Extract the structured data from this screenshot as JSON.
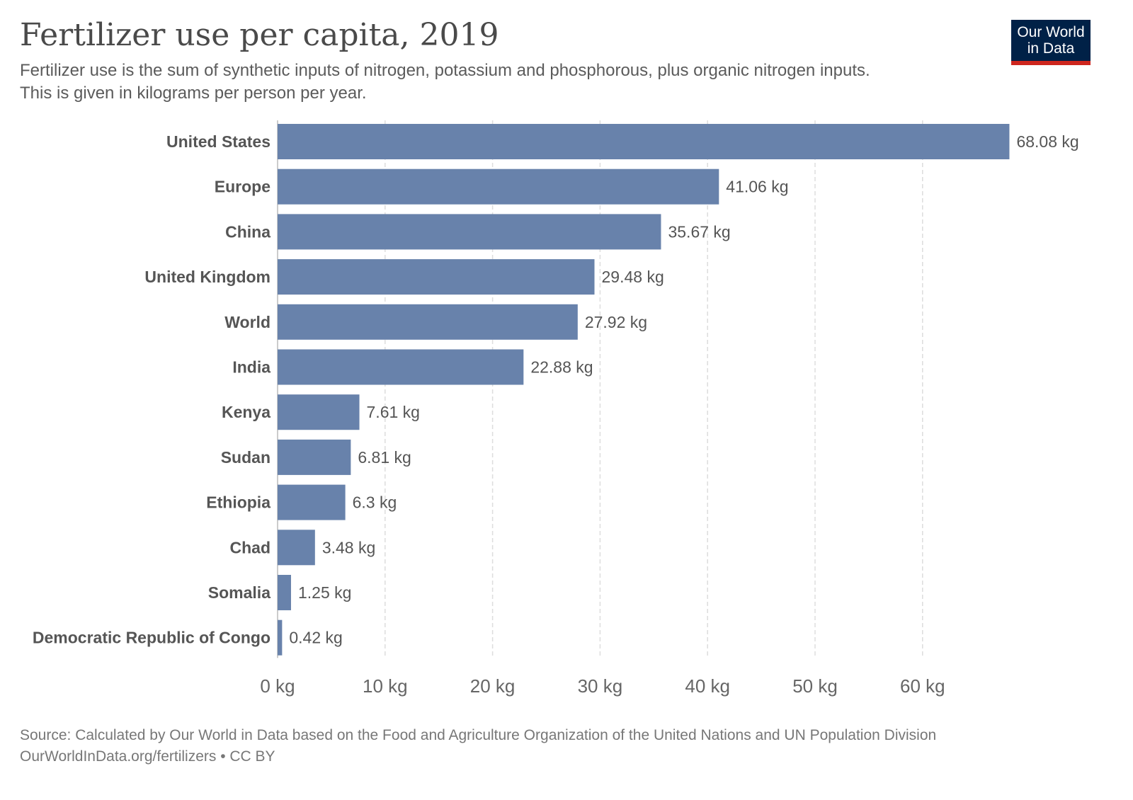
{
  "title": "Fertilizer use per capita, 2019",
  "subtitle_lines": [
    "Fertilizer use is the sum of synthetic inputs of nitrogen, potassium and phosphorous, plus organic nitrogen inputs.",
    "This is given in kilograms per person per year."
  ],
  "logo": {
    "line1": "Our World",
    "line2": "in Data",
    "bg_color": "#002147",
    "accent_color": "#ce261e"
  },
  "chart_data": {
    "type": "bar",
    "orientation": "horizontal",
    "categories": [
      "United States",
      "Europe",
      "China",
      "United Kingdom",
      "World",
      "India",
      "Kenya",
      "Sudan",
      "Ethiopia",
      "Chad",
      "Somalia",
      "Democratic Republic of Congo"
    ],
    "values": [
      68.08,
      41.06,
      35.67,
      29.48,
      27.92,
      22.88,
      7.61,
      6.81,
      6.3,
      3.48,
      1.25,
      0.42
    ],
    "value_labels": [
      "68.08 kg",
      "41.06 kg",
      "35.67 kg",
      "29.48 kg",
      "27.92 kg",
      "22.88 kg",
      "7.61 kg",
      "6.81 kg",
      "6.3 kg",
      "3.48 kg",
      "1.25 kg",
      "0.42 kg"
    ],
    "unit": "kg",
    "xlim": [
      0,
      68.08
    ],
    "xticks": [
      0,
      10,
      20,
      30,
      40,
      50,
      60
    ],
    "xtick_labels": [
      "0 kg",
      "10 kg",
      "20 kg",
      "30 kg",
      "40 kg",
      "50 kg",
      "60 kg"
    ],
    "grid": "vertical dashed",
    "bar_color": "#6882ab"
  },
  "footer": {
    "source": "Source: Calculated by Our World in Data based on the Food and Agriculture Organization of the United Nations and UN Population Division",
    "url_license": "OurWorldInData.org/fertilizers • CC BY"
  }
}
